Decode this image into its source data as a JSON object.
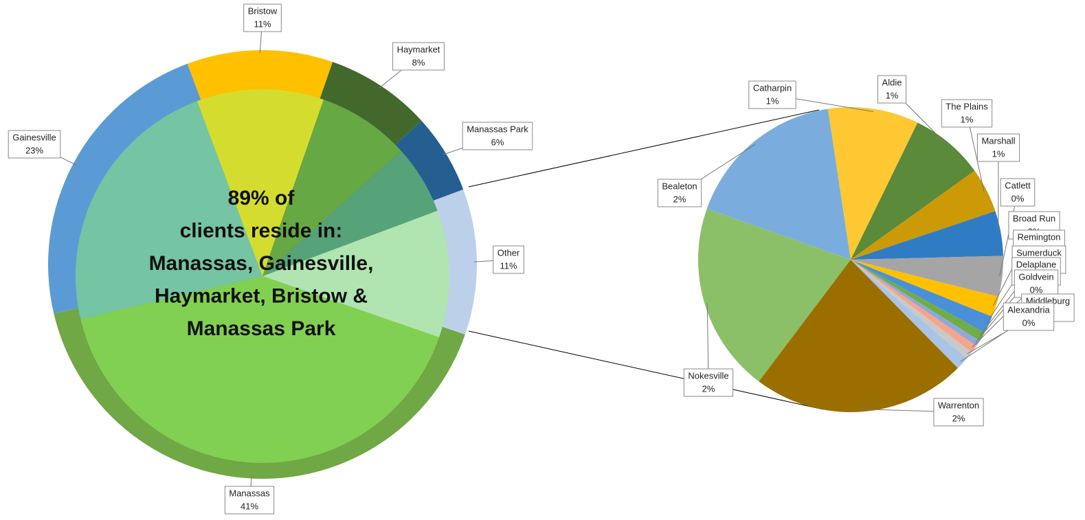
{
  "chart_data": [
    {
      "type": "pie",
      "categories": [
        "Other",
        "Manassas",
        "Gainesville",
        "Bristow",
        "Haymarket",
        "Manassas Park"
      ],
      "values": [
        11,
        41,
        23,
        11,
        8,
        6
      ],
      "value_labels": [
        "11%",
        "41%",
        "23%",
        "11%",
        "8%",
        "6%"
      ],
      "colors": [
        "#bdd0ea",
        "#6fa845",
        "#5b9bd5",
        "#ffc000",
        "#43682b",
        "#255e91"
      ],
      "inner_colors": [
        "#b0e4b0",
        "#82d052",
        "#75c4a3",
        "#d4dd2f",
        "#66a844",
        "#56a37a"
      ],
      "annotation": [
        "89% of",
        "clients reside in:",
        "Manassas, Gainesville,",
        "Haymarket, Bristow &",
        "Manassas Park"
      ]
    },
    {
      "type": "pie",
      "categories": [
        "Aldie",
        "The Plains",
        "Marshall",
        "Catlett",
        "Broad Run",
        "Remington",
        "Sumerduck",
        "Delaplane",
        "Goldvein",
        "Middleburg",
        "Alexandria",
        "Warrenton",
        "Nokesville",
        "Bealeton",
        "Catharpin"
      ],
      "values": [
        0.86,
        0.52,
        0.52,
        0.47,
        0.24,
        0.2,
        0.11,
        0.07,
        0.09,
        0.09,
        0.15,
        2.48,
        2.2,
        1.88,
        1.05
      ],
      "value_labels": [
        "1%",
        "1%",
        "1%",
        "0%",
        "0%",
        "0%",
        "0%",
        "0%",
        "0%",
        "0%",
        "0%",
        "2%",
        "2%",
        "2%",
        "1%"
      ],
      "colors": [
        "#5a8a3a",
        "#cc9a06",
        "#2f7cc4",
        "#a5a5a5",
        "#ffc000",
        "#4a90d9",
        "#70ad47",
        "#8fa8dc",
        "#f4a58a",
        "#c9c9c9",
        "#a9c4e6",
        "#9a6f00",
        "#8cc068",
        "#7aadde",
        "#ffc832"
      ]
    }
  ]
}
